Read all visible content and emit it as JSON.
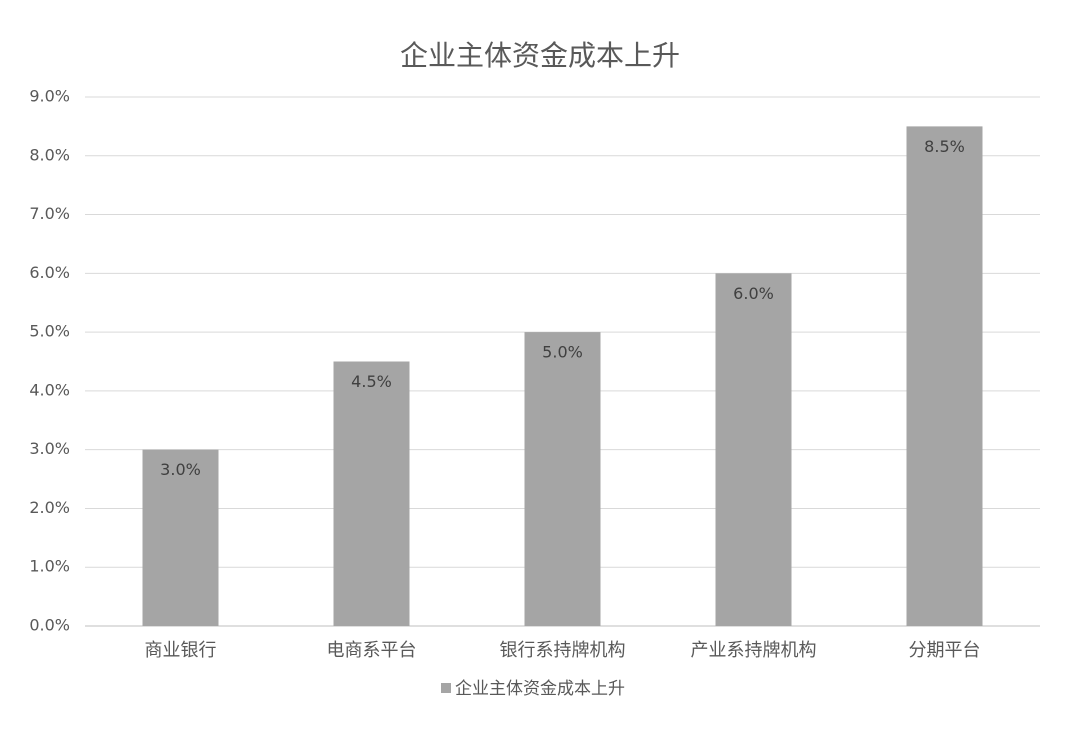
{
  "chart_data": {
    "type": "bar",
    "title": "企业主体资金成本上升",
    "categories": [
      "商业银行",
      "电商系平台",
      "银行系持牌机构",
      "产业系持牌机构",
      "分期平台"
    ],
    "series": [
      {
        "name": "企业主体资金成本上升",
        "color": "#a5a5a5",
        "values": [
          3.0,
          4.5,
          5.0,
          6.0,
          8.5
        ],
        "value_labels": [
          "3.0%",
          "4.5%",
          "5.0%",
          "6.0%",
          "8.5%"
        ]
      }
    ],
    "ylim": [
      0,
      9
    ],
    "yticks": [
      {
        "value": 0,
        "label": "0.0%"
      },
      {
        "value": 1,
        "label": "1.0%"
      },
      {
        "value": 2,
        "label": "2.0%"
      },
      {
        "value": 3,
        "label": "3.0%"
      },
      {
        "value": 4,
        "label": "4.0%"
      },
      {
        "value": 5,
        "label": "5.0%"
      },
      {
        "value": 6,
        "label": "6.0%"
      },
      {
        "value": 7,
        "label": "7.0%"
      },
      {
        "value": 8,
        "label": "8.0%"
      },
      {
        "value": 9,
        "label": "9.0%"
      }
    ],
    "grid": true,
    "legend": "bottom"
  }
}
